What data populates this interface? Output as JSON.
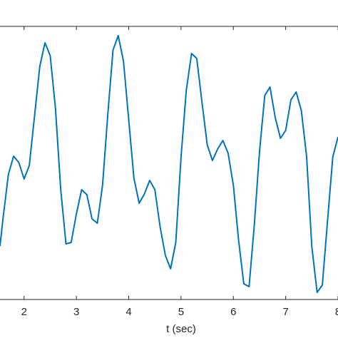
{
  "chart_data": {
    "type": "line",
    "x_label": "t (sec)",
    "x": [
      1.54,
      1.6,
      1.7,
      1.8,
      1.9,
      2.0,
      2.1,
      2.2,
      2.3,
      2.4,
      2.5,
      2.6,
      2.7,
      2.8,
      2.9,
      3.0,
      3.1,
      3.2,
      3.3,
      3.4,
      3.5,
      3.6,
      3.7,
      3.8,
      3.9,
      4.0,
      4.1,
      4.2,
      4.3,
      4.4,
      4.5,
      4.6,
      4.7,
      4.8,
      4.9,
      5.0,
      5.1,
      5.2,
      5.3,
      5.4,
      5.5,
      5.6,
      5.7,
      5.8,
      5.9,
      6.0,
      6.1,
      6.2,
      6.3,
      6.4,
      6.5,
      6.6,
      6.7,
      6.8,
      6.9,
      7.0,
      7.1,
      7.2,
      7.3,
      7.4,
      7.5,
      7.6,
      7.7,
      7.8,
      7.9,
      8.0
    ],
    "series": [
      {
        "color": "#0072bd",
        "values": [
          75,
          115,
          175,
          201,
          192,
          169,
          188,
          257,
          327,
          360,
          342,
          268,
          155,
          78,
          80,
          120,
          154,
          147,
          113,
          107,
          160,
          260,
          350,
          370,
          334,
          252,
          170,
          135,
          148,
          167,
          154,
          102,
          62,
          43,
          80,
          200,
          293,
          345,
          338,
          277,
          217,
          195,
          211,
          223,
          205,
          160,
          83,
          22,
          18,
          104,
          207,
          286,
          298,
          255,
          226,
          237,
          280,
          291,
          265,
          200,
          74,
          10,
          20,
          110,
          200,
          228
        ]
      }
    ],
    "xlim": [
      1.54,
      8.0
    ],
    "xticks": [
      2,
      3,
      4,
      5,
      6,
      7,
      8
    ],
    "ylim": [
      0,
      383
    ]
  }
}
